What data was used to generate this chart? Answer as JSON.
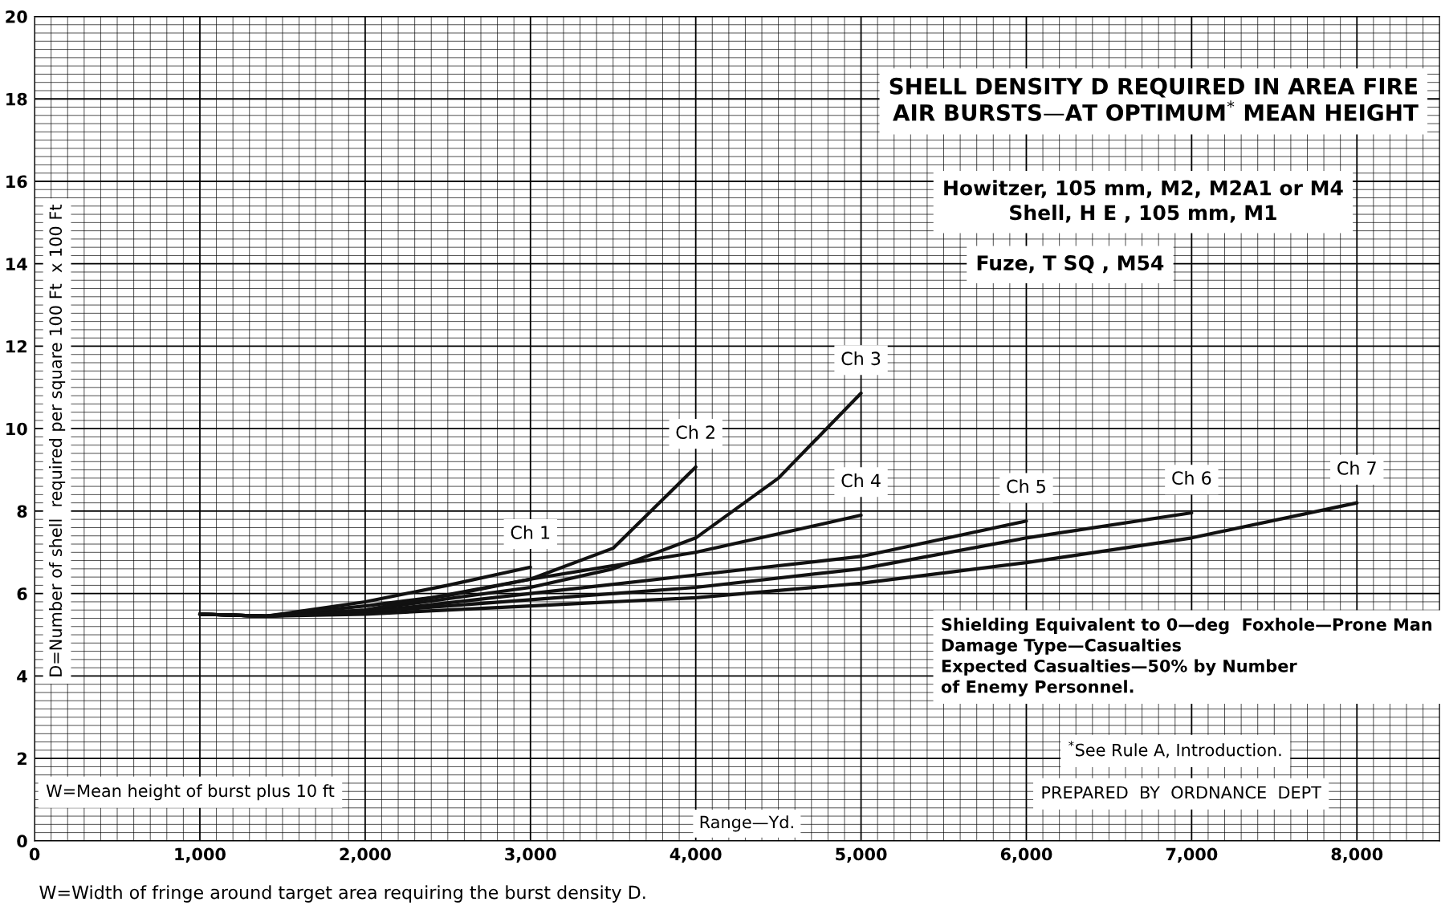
{
  "chart_data": {
    "type": "line",
    "title": "SHELL DENSITY D REQUIRED IN AREA FIRE\nAIR BURSTS—AT OPTIMUM$^{*}$ MEAN HEIGHT",
    "xlabel": "Range—Yd.",
    "ylabel": "D=Number of shell  required per square 100 Ft  x 100 Ft",
    "xlim": [
      0,
      8500
    ],
    "ylim": [
      0,
      20
    ],
    "xticks": [
      0,
      {
        "value": 1000,
        "label": "1,000"
      },
      {
        "value": 2000,
        "label": "2,000"
      },
      {
        "value": 3000,
        "label": "3,000"
      },
      {
        "value": 4000,
        "label": "4,000"
      },
      {
        "value": 5000,
        "label": "5,000"
      },
      {
        "value": 6000,
        "label": "6,000"
      },
      {
        "value": 7000,
        "label": "7,000"
      },
      {
        "value": 8000,
        "label": "8,000"
      }
    ],
    "yticks": [
      0,
      2,
      4,
      6,
      8,
      10,
      12,
      14,
      16,
      18,
      20
    ],
    "grid": true,
    "legend": false,
    "marker": "none",
    "line_style": "solid",
    "series": [
      {
        "name": "Ch 1",
        "color": "#111111",
        "x": [
          1000,
          1400,
          2000,
          2500,
          3000
        ],
        "values": [
          5.5,
          5.45,
          5.8,
          6.2,
          6.64
        ]
      },
      {
        "name": "Ch 2",
        "color": "#111111",
        "x": [
          1000,
          1400,
          2000,
          2500,
          3000,
          3500,
          4000
        ],
        "values": [
          5.5,
          5.45,
          5.7,
          5.95,
          6.35,
          7.1,
          9.07
        ]
      },
      {
        "name": "Ch 3",
        "color": "#111111",
        "x": [
          1000,
          1400,
          2000,
          3000,
          3500,
          4000,
          4500,
          5000
        ],
        "values": [
          5.5,
          5.45,
          5.6,
          6.15,
          6.6,
          7.35,
          8.8,
          10.86
        ]
      },
      {
        "name": "Ch 4",
        "color": "#111111",
        "x": [
          1000,
          1400,
          2000,
          3000,
          4000,
          5000
        ],
        "values": [
          5.5,
          5.45,
          5.6,
          6.35,
          7.0,
          7.9
        ]
      },
      {
        "name": "Ch 5",
        "color": "#111111",
        "x": [
          1000,
          1400,
          2000,
          3000,
          4000,
          5000,
          6000
        ],
        "values": [
          5.5,
          5.45,
          5.55,
          6.0,
          6.45,
          6.9,
          7.76
        ]
      },
      {
        "name": "Ch 6",
        "color": "#111111",
        "x": [
          1000,
          1400,
          2000,
          3000,
          4000,
          5000,
          6000,
          7000
        ],
        "values": [
          5.5,
          5.45,
          5.55,
          5.85,
          6.15,
          6.6,
          7.35,
          7.96
        ]
      },
      {
        "name": "Ch 7",
        "color": "#111111",
        "x": [
          1000,
          1400,
          2000,
          3000,
          4000,
          5000,
          6000,
          7000,
          8000
        ],
        "values": [
          5.5,
          5.45,
          5.5,
          5.7,
          5.9,
          6.25,
          6.75,
          7.35,
          8.2
        ]
      }
    ],
    "annotations": [
      "Howitzer, 105 mm, M2, M2A1 or M4\nShell, H E , 105 mm, M1",
      "Fuze, T SQ , M54",
      "Shielding Equivalent to 0—deg  Foxhole—Prone Man\nDamage Type—Casualties\nExpected Casualties—50% by Number\nof Enemy Personnel.",
      "$^{*}$See Rule A, Introduction.",
      "PREPARED  BY  ORDNANCE  DEPT",
      "W=Mean height of burst plus 10 ft",
      "W=Width of fringe around target area requiring the burst density D."
    ]
  }
}
